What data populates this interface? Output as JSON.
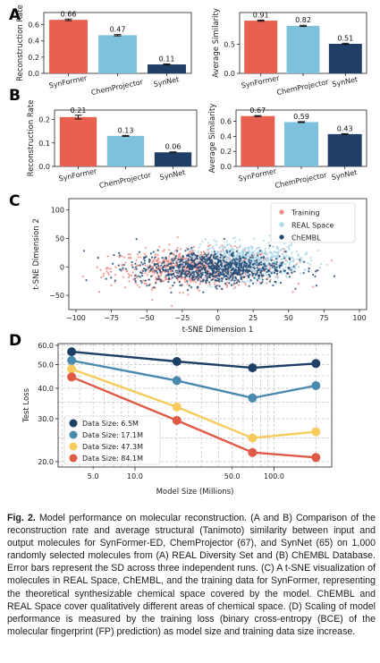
{
  "colors": {
    "synformer": "#e8604f",
    "chemprojector": "#7ec1dc",
    "synnet": "#1f3f66",
    "training": "#ec8b85",
    "real_space": "#a9d6e8",
    "chembl": "#234a73",
    "d6_5": "#1d3f66",
    "d17_1": "#4a8aad",
    "d47_3": "#f7cc5c",
    "d84_1": "#e05a48"
  },
  "panels": {
    "A": "A",
    "B": "B",
    "C": "C",
    "D": "D"
  },
  "chart_data": [
    {
      "panel": "A",
      "type": "bar",
      "categories": [
        "SynFormer",
        "ChemProjector",
        "SynNet"
      ],
      "values": [
        0.66,
        0.47,
        0.11
      ],
      "value_labels": [
        "0.66",
        "0.47",
        "0.11"
      ],
      "errors": [
        0.01,
        0.008,
        0.006
      ],
      "ylabel": "Reconstruction Rate",
      "ylim": [
        0,
        0.75
      ],
      "yticks": [
        0.0,
        0.2,
        0.4,
        0.6
      ],
      "ytick_labels": [
        "0.0",
        "0.2",
        "0.4",
        "0.6"
      ]
    },
    {
      "panel": "A",
      "type": "bar",
      "categories": [
        "SynFormer",
        "ChemProjector",
        "SynNet"
      ],
      "values": [
        0.91,
        0.82,
        0.51
      ],
      "value_labels": [
        "0.91",
        "0.82",
        "0.51"
      ],
      "errors": [
        0.01,
        0.01,
        0.01
      ],
      "ylabel": "Average Similarity",
      "ylim": [
        0,
        1.05
      ],
      "yticks": [
        0.0,
        0.5
      ],
      "ytick_labels": [
        "0.0",
        "0.5"
      ]
    },
    {
      "panel": "B",
      "type": "bar",
      "categories": [
        "SynFormer",
        "ChemProjector",
        "SynNet"
      ],
      "values": [
        0.21,
        0.13,
        0.06
      ],
      "value_labels": [
        "0.21",
        "0.13",
        "0.06"
      ],
      "errors": [
        0.008,
        0.002,
        0.002
      ],
      "ylabel": "Reconstruction Rate",
      "ylim": [
        0,
        0.24
      ],
      "yticks": [
        0.0,
        0.1,
        0.2
      ],
      "ytick_labels": [
        "0.0",
        "0.1",
        "0.2"
      ]
    },
    {
      "panel": "B",
      "type": "bar",
      "categories": [
        "SynFormer",
        "ChemProjector",
        "SynNet"
      ],
      "values": [
        0.67,
        0.59,
        0.43
      ],
      "value_labels": [
        "0.67",
        "0.59",
        "0.43"
      ],
      "errors": [
        0.006,
        0.006,
        0.006
      ],
      "ylabel": "Average Similarity",
      "ylim": [
        0,
        0.75
      ],
      "yticks": [
        0.0,
        0.2,
        0.4,
        0.6
      ],
      "ytick_labels": [
        "0.0",
        "0.2",
        "0.4",
        "0.6"
      ]
    },
    {
      "panel": "C",
      "type": "scatter",
      "xlabel": "t-SNE Dimension 1",
      "ylabel": "t-SNE Dimension 2",
      "xlim": [
        -105,
        105
      ],
      "ylim": [
        -75,
        120
      ],
      "xticks": [
        -100,
        -75,
        -50,
        -25,
        0,
        25,
        50,
        75,
        100
      ],
      "xtick_labels": [
        "−100",
        "−75",
        "−50",
        "−25",
        "0",
        "25",
        "50",
        "75",
        "100"
      ],
      "yticks": [
        -50,
        0,
        50,
        100
      ],
      "ytick_labels": [
        "−50",
        "0",
        "50",
        "100"
      ],
      "legend": "top-right",
      "series": [
        {
          "name": "Training",
          "color_key": "training",
          "center": [
            -15,
            -2
          ],
          "spread": [
            55,
            30
          ],
          "n": 700
        },
        {
          "name": "REAL Space",
          "color_key": "real_space",
          "center": [
            20,
            10
          ],
          "spread": [
            35,
            28
          ],
          "n": 700
        },
        {
          "name": "ChEMBL",
          "color_key": "chembl",
          "center": [
            -5,
            -2
          ],
          "spread": [
            48,
            26
          ],
          "n": 900
        }
      ]
    },
    {
      "panel": "D",
      "type": "line",
      "xlabel": "Model Size (Millions)",
      "ylabel": "Test Loss",
      "xscale": "log",
      "yscale": "log",
      "xlim": [
        2.8,
        260
      ],
      "ylim": [
        19.0,
        61.0
      ],
      "xticks": [
        10.0,
        100.0
      ],
      "xtick_labels": [
        "10.0",
        "100.0"
      ],
      "xticks_minor": [
        5.0,
        50.0
      ],
      "xtick_minor_labels": [
        "5.0",
        "50.0"
      ],
      "yticks": [
        20.0,
        30.0,
        40.0,
        50.0,
        60.0
      ],
      "ytick_labels": [
        "20.0",
        "30.0",
        "40.0",
        "50.0",
        "60.0"
      ],
      "legend": "lower-left",
      "x": [
        3.5,
        20.0,
        70.0,
        200.0
      ],
      "series": [
        {
          "name": "Data Size: 6.5M",
          "color_key": "d6_5",
          "values": [
            56.5,
            51.5,
            48.5,
            50.5
          ]
        },
        {
          "name": "Data Size: 17.1M",
          "color_key": "d17_1",
          "values": [
            52.0,
            43.0,
            36.5,
            41.0
          ]
        },
        {
          "name": "Data Size: 47.3M",
          "color_key": "d47_3",
          "values": [
            48.0,
            33.5,
            25.0,
            26.5
          ]
        },
        {
          "name": "Data Size: 84.1M",
          "color_key": "d84_1",
          "values": [
            44.5,
            29.5,
            21.8,
            20.8
          ]
        }
      ]
    }
  ],
  "caption": {
    "label": "Fig. 2.",
    "text": "Model performance on molecular reconstruction. (A and B) Comparison of the reconstruction rate and average structural (Tanimoto) similarity between input and output molecules for SynFormer-ED, ChemProjector (67), and SynNet (65) on 1,000 randomly selected molecules from (A) REAL Diversity Set and (B) ChEMBL Database. Error bars represent the SD across three independent runs. (C) A t-SNE visualization of molecules in REAL Space, ChEMBL, and the training data for SynFormer, representing the theoretical synthesizable chemical space covered by the model. ChEMBL and REAL Space cover qualitatively different areas of chemical space. (D) Scaling of model performance is measured by the training loss (binary cross-entropy (BCE) of the molecular fingerprint (FP) prediction) as model size and training data size increase."
  }
}
